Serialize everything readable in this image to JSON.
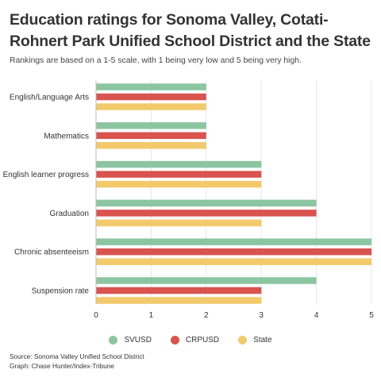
{
  "chart_data": {
    "type": "bar",
    "orientation": "horizontal",
    "title": "Education ratings for Sonoma Valley, Cotati-Rohnert Park Unified School District and the State",
    "subtitle": "Rankings are based on a 1-5 scale, with 1 being very low and 5 being very high.",
    "categories": [
      "English/Language Arts",
      "Mathematics",
      "English learner progress",
      "Graduation",
      "Chronic absenteeism",
      "Suspension rate"
    ],
    "series": [
      {
        "name": "SVUSD",
        "color": "#8cc5a1",
        "values": [
          2,
          2,
          3,
          4,
          5,
          4
        ]
      },
      {
        "name": "CRPUSD",
        "color": "#d9534f",
        "values": [
          2,
          2,
          3,
          4,
          5,
          3
        ]
      },
      {
        "name": "State",
        "color": "#f2ca6b",
        "values": [
          2,
          2,
          3,
          3,
          5,
          3
        ]
      }
    ],
    "xlim": [
      0,
      5
    ],
    "xticks": [
      "0",
      "1",
      "2",
      "3",
      "4",
      "5"
    ],
    "legend_position": "bottom",
    "grid": true
  },
  "footer": {
    "source": "Source: Sonoma Valley Unified School District",
    "credit": "Graph: Chase Hunter/Index-Tribune"
  }
}
